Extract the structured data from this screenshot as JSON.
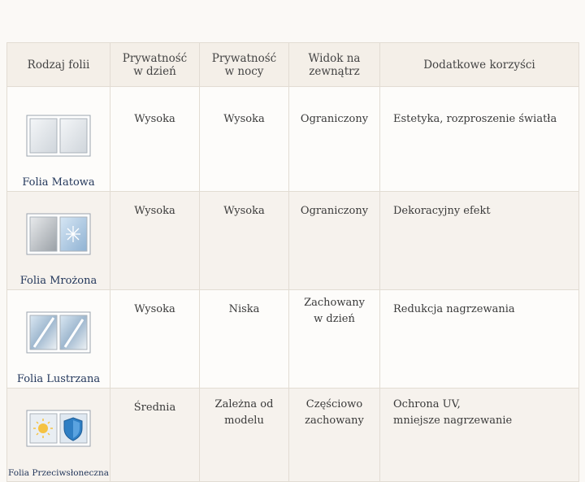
{
  "table": {
    "header": [
      "Rodzaj folii",
      "Prywatność\nw dzień",
      "Prywatność\nw nocy",
      "Widok na\nzewnątrz",
      "Dodatkowe korzyści"
    ],
    "rows": [
      [
        "Folia Matowa",
        "Wysoka",
        "Wysoka",
        "Ograniczony",
        "Estetyka, rozproszenie światła"
      ],
      [
        "Folia Mrożona",
        "Wysoka",
        "Wysoka",
        "Ograniczony",
        "Dekoracyjny efekt"
      ],
      [
        "Folia Lustrzana",
        "Wysoka",
        "Niska",
        "Zachowany\nw dzień",
        "Redukcja nagrzewania"
      ],
      [
        "Folia Przeciwsłoneczna",
        "Średnia",
        "Zależna od\nmodelu",
        "Częściowo\nzachowany",
        "Ochrona UV,\nmniejsze nagrzewanie"
      ]
    ]
  }
}
